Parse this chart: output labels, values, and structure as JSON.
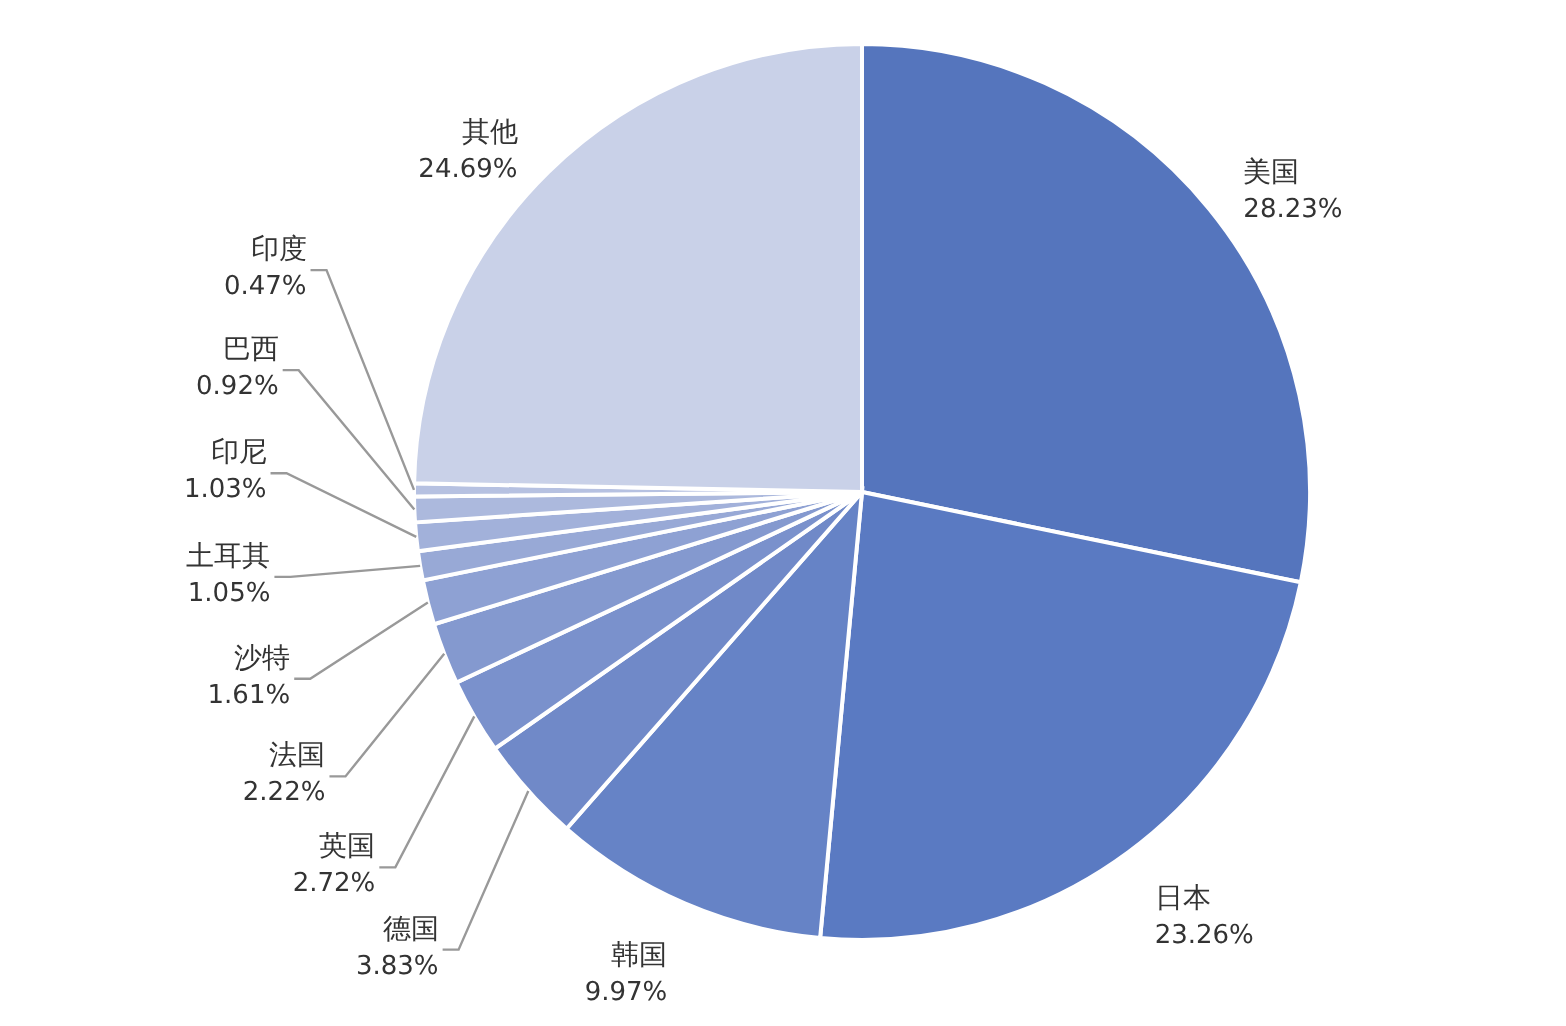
{
  "chart_data": {
    "type": "pie",
    "categories": [
      "美国",
      "日本",
      "韩国",
      "德国",
      "英国",
      "法国",
      "沙特",
      "土耳其",
      "印尼",
      "巴西",
      "印度",
      "其他"
    ],
    "values": [
      28.23,
      23.26,
      9.97,
      3.83,
      2.72,
      2.22,
      1.61,
      1.05,
      1.03,
      0.92,
      0.47,
      24.69
    ],
    "value_labels": [
      "28.23%",
      "23.26%",
      "9.97%",
      "3.83%",
      "2.72%",
      "2.22%",
      "1.61%",
      "1.05%",
      "1.03%",
      "0.92%",
      "0.47%",
      "24.69%"
    ],
    "colors": [
      "#5575bd",
      "#5a7ac2",
      "#6683c6",
      "#7089c8",
      "#7a91cc",
      "#8499cf",
      "#8ea1d3",
      "#98a9d6",
      "#a2b1da",
      "#acb9dd",
      "#b6c1e1",
      "#c9d1e8"
    ]
  }
}
